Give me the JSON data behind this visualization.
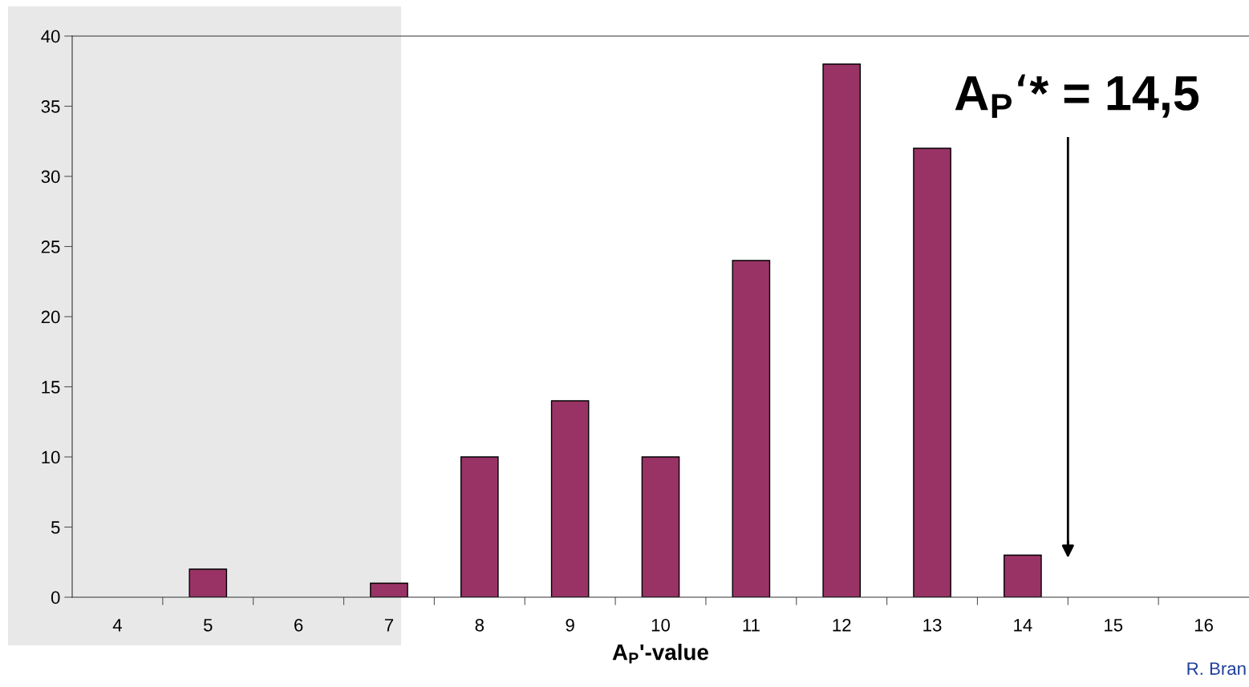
{
  "chart_data": {
    "type": "bar",
    "x": [
      4,
      5,
      6,
      7,
      8,
      9,
      10,
      11,
      12,
      13,
      14,
      15,
      16
    ],
    "values": [
      0,
      2,
      0,
      1,
      10,
      14,
      10,
      24,
      38,
      32,
      3,
      0,
      0
    ],
    "color": "#993366",
    "xlabel": "A$_{P}$'-value",
    "xlim": [
      3.5,
      16.5
    ],
    "xticks": [
      4,
      5,
      6,
      7,
      8,
      9,
      10,
      11,
      12,
      13,
      14,
      15,
      16,
      {
        "value": 4.5,
        "label": null
      },
      {
        "value": 5.5,
        "label": null
      },
      {
        "value": 6.5,
        "label": null
      },
      {
        "value": 7.5,
        "label": null
      },
      {
        "value": 8.5,
        "label": null
      },
      {
        "value": 9.5,
        "label": null
      },
      {
        "value": 10.5,
        "label": null
      },
      {
        "value": 11.5,
        "label": null
      },
      {
        "value": 12.5,
        "label": null
      },
      {
        "value": 13.5,
        "label": null
      },
      {
        "value": 14.5,
        "label": null
      },
      {
        "value": 15.5,
        "label": null
      }
    ],
    "ylim": [
      0,
      40
    ],
    "yticks": [
      0,
      5,
      10,
      15,
      20,
      25,
      30,
      35,
      40
    ],
    "ref_lines": [
      {
        "axis": "x",
        "value": 14.5,
        "label": "A$_{P}$‘* = 14,5"
      }
    ],
    "annotations": [
      "R. Bran"
    ],
    "grid": false,
    "legend": false
  }
}
